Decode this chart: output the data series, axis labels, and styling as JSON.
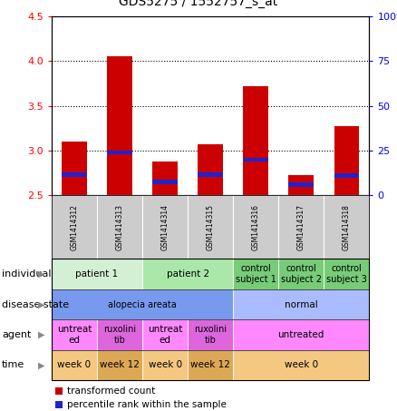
{
  "title": "GDS5275 / 1552757_s_at",
  "samples": [
    "GSM1414312",
    "GSM1414313",
    "GSM1414314",
    "GSM1414315",
    "GSM1414316",
    "GSM1414317",
    "GSM1414318"
  ],
  "transformed_count": [
    3.1,
    4.05,
    2.88,
    3.07,
    3.72,
    2.73,
    3.27
  ],
  "percentile_rank": [
    2.73,
    2.98,
    2.65,
    2.73,
    2.9,
    2.62,
    2.72
  ],
  "bar_bottom": 2.5,
  "ylim": [
    2.5,
    4.5
  ],
  "y_left_ticks": [
    2.5,
    3.0,
    3.5,
    4.0,
    4.5
  ],
  "y_right_ticks": [
    0,
    25,
    50,
    75,
    100
  ],
  "y_right_values": [
    2.5,
    3.0,
    3.5,
    4.0,
    4.5
  ],
  "dotted_lines": [
    3.0,
    3.5,
    4.0
  ],
  "bar_color": "#cc0000",
  "percentile_color": "#2222cc",
  "individual_groups": [
    {
      "label": "patient 1",
      "cols": [
        0,
        1
      ],
      "color": "#d4f0d4"
    },
    {
      "label": "patient 2",
      "cols": [
        2,
        3
      ],
      "color": "#aae8aa"
    },
    {
      "label": "control\nsubject 1",
      "cols": [
        4
      ],
      "color": "#77cc77"
    },
    {
      "label": "control\nsubject 2",
      "cols": [
        5
      ],
      "color": "#77cc77"
    },
    {
      "label": "control\nsubject 3",
      "cols": [
        6
      ],
      "color": "#77cc77"
    }
  ],
  "disease_groups": [
    {
      "label": "alopecia areata",
      "cols": [
        0,
        1,
        2,
        3
      ],
      "color": "#7799ee"
    },
    {
      "label": "normal",
      "cols": [
        4,
        5,
        6
      ],
      "color": "#aabbff"
    }
  ],
  "agent_groups": [
    {
      "label": "untreat\ned",
      "cols": [
        0
      ],
      "color": "#ff88ff"
    },
    {
      "label": "ruxolini\ntib",
      "cols": [
        1
      ],
      "color": "#dd66dd"
    },
    {
      "label": "untreat\ned",
      "cols": [
        2
      ],
      "color": "#ff88ff"
    },
    {
      "label": "ruxolini\ntib",
      "cols": [
        3
      ],
      "color": "#dd66dd"
    },
    {
      "label": "untreated",
      "cols": [
        4,
        5,
        6
      ],
      "color": "#ff88ff"
    }
  ],
  "time_groups": [
    {
      "label": "week 0",
      "cols": [
        0
      ],
      "color": "#f5c882"
    },
    {
      "label": "week 12",
      "cols": [
        1
      ],
      "color": "#dda855"
    },
    {
      "label": "week 0",
      "cols": [
        2
      ],
      "color": "#f5c882"
    },
    {
      "label": "week 12",
      "cols": [
        3
      ],
      "color": "#dda855"
    },
    {
      "label": "week 0",
      "cols": [
        4,
        5,
        6
      ],
      "color": "#f5c882"
    }
  ]
}
